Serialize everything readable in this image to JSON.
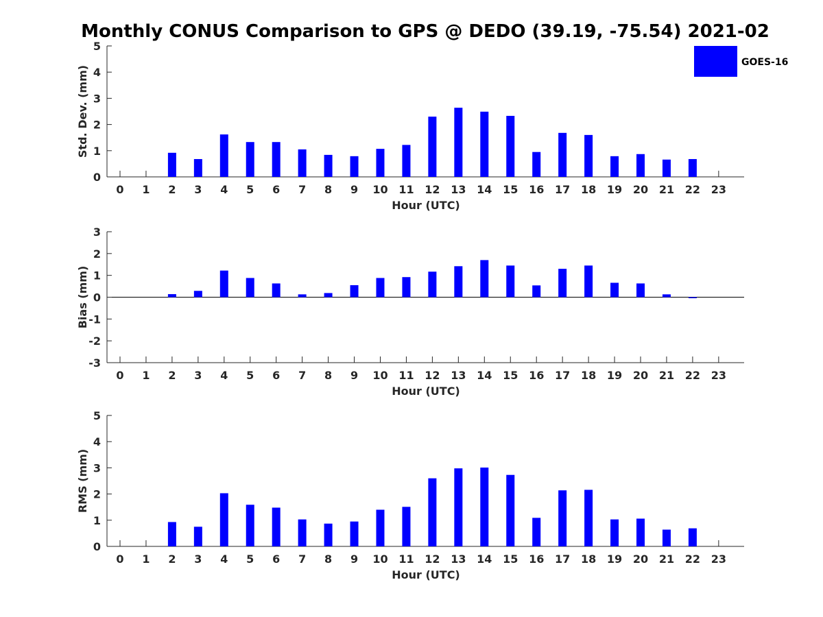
{
  "title": "Monthly CONUS Comparison to GPS @ DEDO (39.19, -75.54) 2021-02",
  "legend": {
    "label": "GOES-16",
    "color": "#0000ff",
    "placement": "top-right"
  },
  "chart_data": [
    {
      "type": "bar",
      "xlabel": "Hour (UTC)",
      "ylabel": "Std. Dev. (mm)",
      "ylim": [
        0,
        5
      ],
      "yticks": [
        0,
        1,
        2,
        3,
        4,
        5
      ],
      "categories": [
        "0",
        "1",
        "2",
        "3",
        "4",
        "5",
        "6",
        "7",
        "8",
        "9",
        "10",
        "11",
        "12",
        "13",
        "14",
        "15",
        "16",
        "17",
        "18",
        "19",
        "20",
        "21",
        "22",
        "23"
      ],
      "series": [
        {
          "name": "GOES-16",
          "values": [
            null,
            null,
            0.92,
            0.68,
            1.62,
            1.33,
            1.33,
            1.05,
            0.84,
            0.79,
            1.07,
            1.22,
            2.3,
            2.64,
            2.49,
            2.33,
            0.95,
            1.68,
            1.6,
            0.79,
            0.87,
            0.66,
            0.68,
            null
          ]
        }
      ]
    },
    {
      "type": "bar",
      "xlabel": "Hour (UTC)",
      "ylabel": "Bias (mm)",
      "ylim": [
        -3,
        3
      ],
      "yticks": [
        -3,
        -2,
        -1,
        0,
        1,
        2,
        3
      ],
      "categories": [
        "0",
        "1",
        "2",
        "3",
        "4",
        "5",
        "6",
        "7",
        "8",
        "9",
        "10",
        "11",
        "12",
        "13",
        "14",
        "15",
        "16",
        "17",
        "18",
        "19",
        "20",
        "21",
        "22",
        "23"
      ],
      "series": [
        {
          "name": "GOES-16",
          "values": [
            null,
            null,
            0.14,
            0.29,
            1.22,
            0.88,
            0.63,
            0.13,
            0.19,
            0.55,
            0.88,
            0.92,
            1.17,
            1.42,
            1.7,
            1.45,
            0.54,
            1.3,
            1.45,
            0.66,
            0.63,
            0.13,
            -0.04,
            null
          ]
        }
      ]
    },
    {
      "type": "bar",
      "xlabel": "Hour (UTC)",
      "ylabel": "RMS (mm)",
      "ylim": [
        0,
        5
      ],
      "yticks": [
        0,
        1,
        2,
        3,
        4,
        5
      ],
      "categories": [
        "0",
        "1",
        "2",
        "3",
        "4",
        "5",
        "6",
        "7",
        "8",
        "9",
        "10",
        "11",
        "12",
        "13",
        "14",
        "15",
        "16",
        "17",
        "18",
        "19",
        "20",
        "21",
        "22",
        "23"
      ],
      "series": [
        {
          "name": "GOES-16",
          "values": [
            null,
            null,
            0.93,
            0.75,
            2.03,
            1.59,
            1.48,
            1.03,
            0.87,
            0.95,
            1.4,
            1.51,
            2.6,
            2.98,
            3.01,
            2.73,
            1.09,
            2.14,
            2.16,
            1.03,
            1.06,
            0.64,
            0.69,
            null
          ]
        }
      ]
    }
  ]
}
